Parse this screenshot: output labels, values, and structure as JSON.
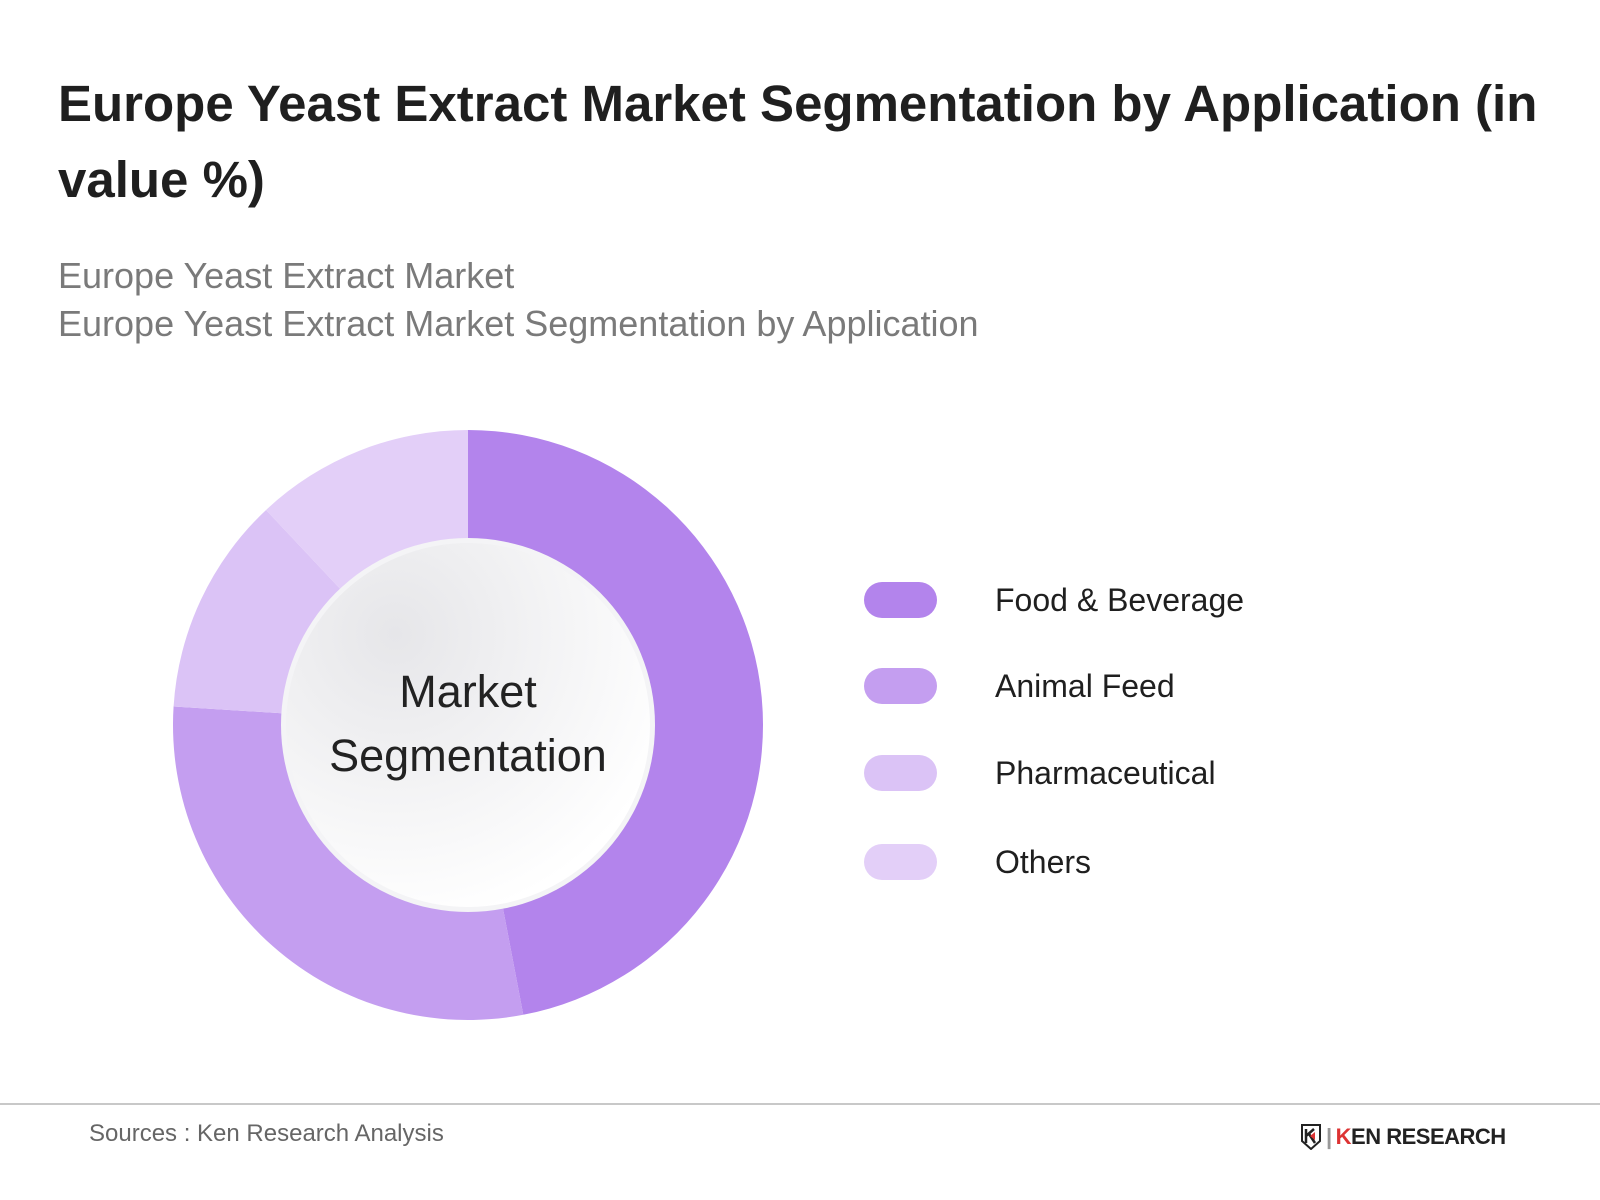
{
  "title": "Europe Yeast Extract Market Segmentation by Application (in value %)",
  "subtitle_1": "Europe Yeast Extract Market",
  "subtitle_2": "Europe Yeast Extract Market Segmentation by Application",
  "chart_data": {
    "type": "pie",
    "variant": "donut",
    "center_label": "Market Segmentation",
    "categories": [
      "Food & Beverage",
      "Animal Feed",
      "Pharmaceutical",
      "Others"
    ],
    "values": [
      47,
      29,
      12,
      12
    ],
    "colors": [
      "#b384ec",
      "#c49ef0",
      "#dbc3f6",
      "#e3cff8"
    ],
    "legend_placement": "right"
  },
  "footer": {
    "sources": "Sources : Ken Research Analysis",
    "logo": "KEN RESEARCH"
  }
}
